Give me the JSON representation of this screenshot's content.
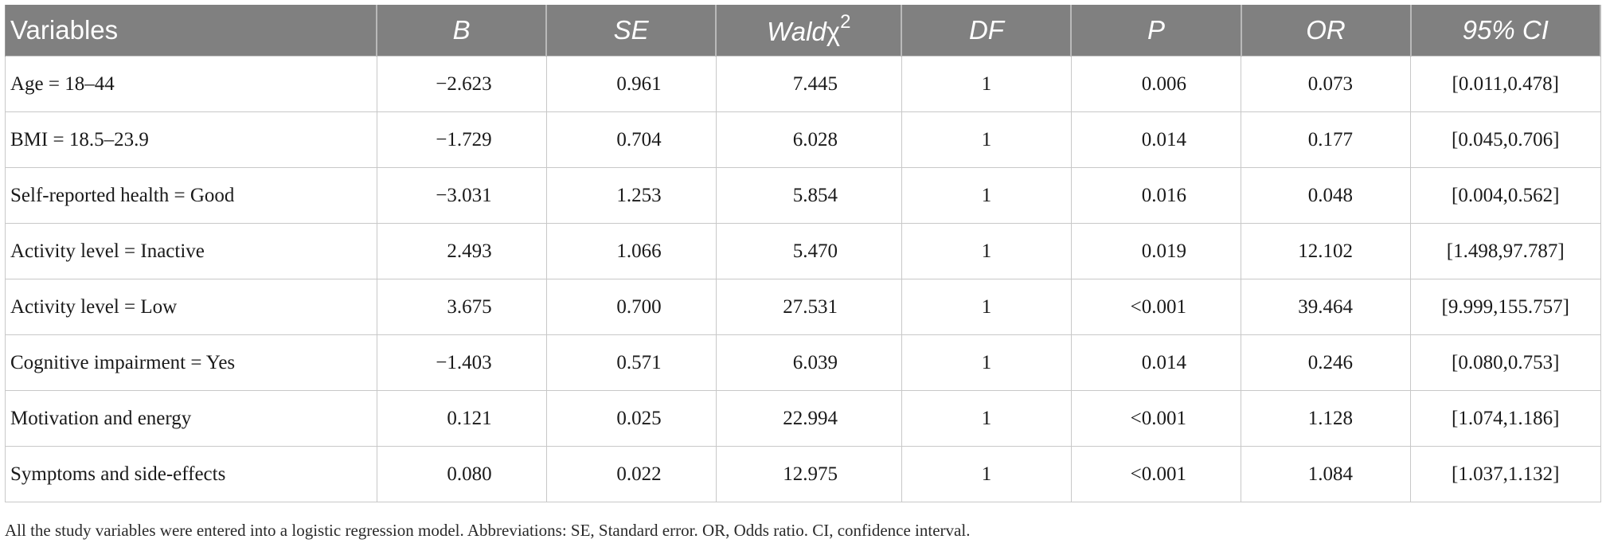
{
  "table": {
    "headers": {
      "variables": "Variables",
      "b": "B",
      "se": "SE",
      "wald_prefix": "Wald",
      "wald_chi": "χ",
      "wald_sup": "2",
      "df": "DF",
      "p": "P",
      "or": "OR",
      "ci": "95% CI"
    },
    "rows": [
      {
        "variable": "Age = 18–44",
        "b": "−2.623",
        "se": "0.961",
        "wald": "7.445",
        "df": "1",
        "p": "0.006",
        "or": "0.073",
        "ci": "[0.011,0.478]"
      },
      {
        "variable": "BMI = 18.5–23.9",
        "b": "−1.729",
        "se": "0.704",
        "wald": "6.028",
        "df": "1",
        "p": "0.014",
        "or": "0.177",
        "ci": "[0.045,0.706]"
      },
      {
        "variable": "Self-reported health = Good",
        "b": "−3.031",
        "se": "1.253",
        "wald": "5.854",
        "df": "1",
        "p": "0.016",
        "or": "0.048",
        "ci": "[0.004,0.562]"
      },
      {
        "variable": "Activity level = Inactive",
        "b": "2.493",
        "se": "1.066",
        "wald": "5.470",
        "df": "1",
        "p": "0.019",
        "or": "12.102",
        "ci": "[1.498,97.787]"
      },
      {
        "variable": "Activity level = Low",
        "b": "3.675",
        "se": "0.700",
        "wald": "27.531",
        "df": "1",
        "p": "<0.001",
        "or": "39.464",
        "ci": "[9.999,155.757]"
      },
      {
        "variable": "Cognitive impairment = Yes",
        "b": "−1.403",
        "se": "0.571",
        "wald": "6.039",
        "df": "1",
        "p": "0.014",
        "or": "0.246",
        "ci": "[0.080,0.753]"
      },
      {
        "variable": "Motivation and energy",
        "b": "0.121",
        "se": "0.025",
        "wald": "22.994",
        "df": "1",
        "p": "<0.001",
        "or": "1.128",
        "ci": "[1.074,1.186]"
      },
      {
        "variable": "Symptoms and side-effects",
        "b": "0.080",
        "se": "0.022",
        "wald": "12.975",
        "df": "1",
        "p": "<0.001",
        "or": "1.084",
        "ci": "[1.037,1.132]"
      }
    ]
  },
  "footnote": "All the study variables were entered into a logistic regression model. Abbreviations: SE, Standard error. OR, Odds ratio. CI, confidence interval.",
  "colors": {
    "header_bg": "#808080",
    "header_text": "#ffffff",
    "grid": "#c8c8c8"
  }
}
